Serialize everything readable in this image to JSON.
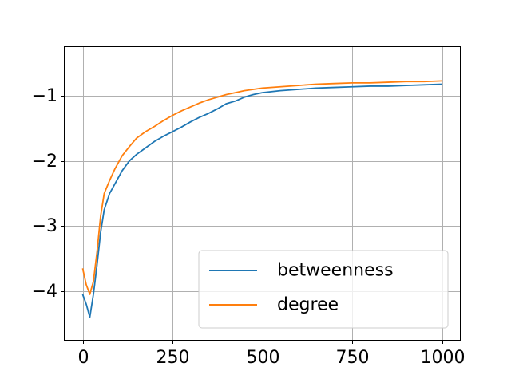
{
  "chart_data": {
    "type": "line",
    "title": "",
    "xlabel": "",
    "ylabel": "",
    "xlim": [
      -50,
      1050
    ],
    "ylim": [
      -4.75,
      -0.25
    ],
    "xticks": [
      0,
      250,
      500,
      750,
      1000
    ],
    "xtick_labels": [
      "0",
      "250",
      "500",
      "750",
      "1000"
    ],
    "yticks": [
      -4,
      -3,
      -2,
      -1
    ],
    "ytick_labels": [
      "−4",
      "−3",
      "−2",
      "−1"
    ],
    "grid": true,
    "legend_position": "lower right",
    "series": [
      {
        "name": "betweenness",
        "color": "#1f77b4",
        "points": [
          [
            0,
            -4.05
          ],
          [
            10,
            -4.2
          ],
          [
            20,
            -4.4
          ],
          [
            30,
            -4.05
          ],
          [
            40,
            -3.6
          ],
          [
            50,
            -3.1
          ],
          [
            60,
            -2.75
          ],
          [
            75,
            -2.5
          ],
          [
            90,
            -2.35
          ],
          [
            110,
            -2.15
          ],
          [
            130,
            -2.0
          ],
          [
            150,
            -1.9
          ],
          [
            175,
            -1.8
          ],
          [
            200,
            -1.7
          ],
          [
            225,
            -1.62
          ],
          [
            250,
            -1.55
          ],
          [
            275,
            -1.48
          ],
          [
            300,
            -1.4
          ],
          [
            325,
            -1.33
          ],
          [
            350,
            -1.27
          ],
          [
            375,
            -1.2
          ],
          [
            400,
            -1.12
          ],
          [
            425,
            -1.08
          ],
          [
            450,
            -1.02
          ],
          [
            475,
            -0.98
          ],
          [
            500,
            -0.95
          ],
          [
            550,
            -0.92
          ],
          [
            600,
            -0.9
          ],
          [
            650,
            -0.88
          ],
          [
            700,
            -0.87
          ],
          [
            750,
            -0.86
          ],
          [
            800,
            -0.85
          ],
          [
            850,
            -0.85
          ],
          [
            900,
            -0.84
          ],
          [
            950,
            -0.83
          ],
          [
            1000,
            -0.82
          ]
        ]
      },
      {
        "name": "degree",
        "color": "#ff7f0e",
        "points": [
          [
            0,
            -3.65
          ],
          [
            10,
            -3.9
          ],
          [
            20,
            -4.05
          ],
          [
            30,
            -3.85
          ],
          [
            40,
            -3.4
          ],
          [
            50,
            -2.85
          ],
          [
            60,
            -2.5
          ],
          [
            75,
            -2.3
          ],
          [
            90,
            -2.12
          ],
          [
            110,
            -1.92
          ],
          [
            130,
            -1.78
          ],
          [
            150,
            -1.65
          ],
          [
            175,
            -1.55
          ],
          [
            200,
            -1.47
          ],
          [
            225,
            -1.38
          ],
          [
            250,
            -1.3
          ],
          [
            275,
            -1.23
          ],
          [
            300,
            -1.17
          ],
          [
            325,
            -1.11
          ],
          [
            350,
            -1.06
          ],
          [
            375,
            -1.02
          ],
          [
            400,
            -0.98
          ],
          [
            425,
            -0.95
          ],
          [
            450,
            -0.92
          ],
          [
            475,
            -0.9
          ],
          [
            500,
            -0.88
          ],
          [
            550,
            -0.86
          ],
          [
            600,
            -0.84
          ],
          [
            650,
            -0.82
          ],
          [
            700,
            -0.81
          ],
          [
            750,
            -0.8
          ],
          [
            800,
            -0.8
          ],
          [
            850,
            -0.79
          ],
          [
            900,
            -0.78
          ],
          [
            950,
            -0.78
          ],
          [
            1000,
            -0.77
          ]
        ]
      }
    ]
  }
}
